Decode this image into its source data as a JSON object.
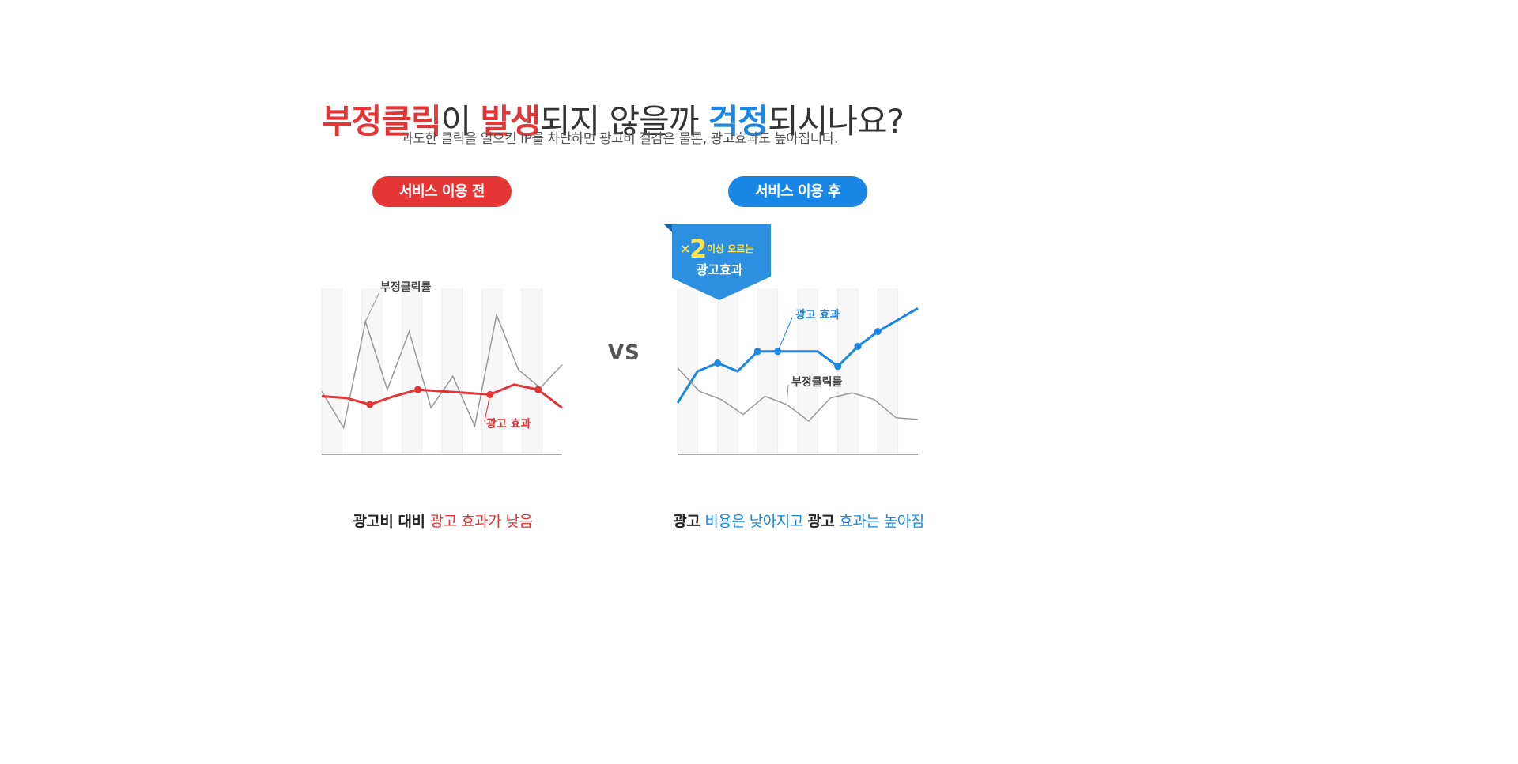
{
  "headline": {
    "part1": "부정클릭",
    "part2": "이 ",
    "part3": "발생",
    "part4": "되지 않을까 ",
    "part5": "걱정",
    "part6": "되시나요?"
  },
  "subline": "과도한 클릭을 일으킨 IP를 차단하면 광고비 절감은 물론, 광고효과도 높아집니다.",
  "pills": {
    "before": "서비스 이용 전",
    "after": "서비스 이용 후"
  },
  "vs": "VS",
  "badge": {
    "multiplier": "2",
    "line1": "이상 오르는",
    "line2": "광고효과"
  },
  "captions": {
    "left": {
      "a": "광고비 대비 ",
      "b": "광고 효과가 낮음"
    },
    "right": {
      "a": "광고 ",
      "b": "비용은 낮아지고 ",
      "c": "광고 ",
      "d": "효과는 높아짐"
    }
  },
  "colors": {
    "red": "#e33436",
    "blue": "#1a86e5",
    "gray": "#999999"
  },
  "chart_data": [
    {
      "type": "line",
      "series": [
        {
          "name": "부정클릭률",
          "color": "#999999",
          "values": [
            38,
            16,
            80,
            39,
            74,
            28,
            47,
            17,
            84,
            51,
            40,
            54
          ]
        },
        {
          "name": "광고 효과",
          "color": "#e33436",
          "values": [
            35,
            34,
            30,
            35,
            39,
            38,
            37,
            36,
            42,
            39,
            28
          ]
        }
      ],
      "markers": {
        "광고 효과": [
          2,
          4,
          7,
          9
        ]
      },
      "ylim": [
        0,
        100
      ]
    },
    {
      "type": "line",
      "series": [
        {
          "name": "광고 효과",
          "color": "#1a86e5",
          "values": [
            31,
            50,
            55,
            50,
            62,
            62,
            62,
            62,
            53,
            65,
            74,
            81,
            88
          ]
        },
        {
          "name": "부정클릭률",
          "color": "#999999",
          "values": [
            52,
            38,
            33,
            24,
            35,
            30,
            20,
            34,
            37,
            33,
            22,
            21
          ]
        }
      ],
      "markers": {
        "광고 효과": [
          2,
          4,
          5,
          8,
          9,
          10
        ]
      },
      "ylim": [
        0,
        100
      ]
    }
  ]
}
